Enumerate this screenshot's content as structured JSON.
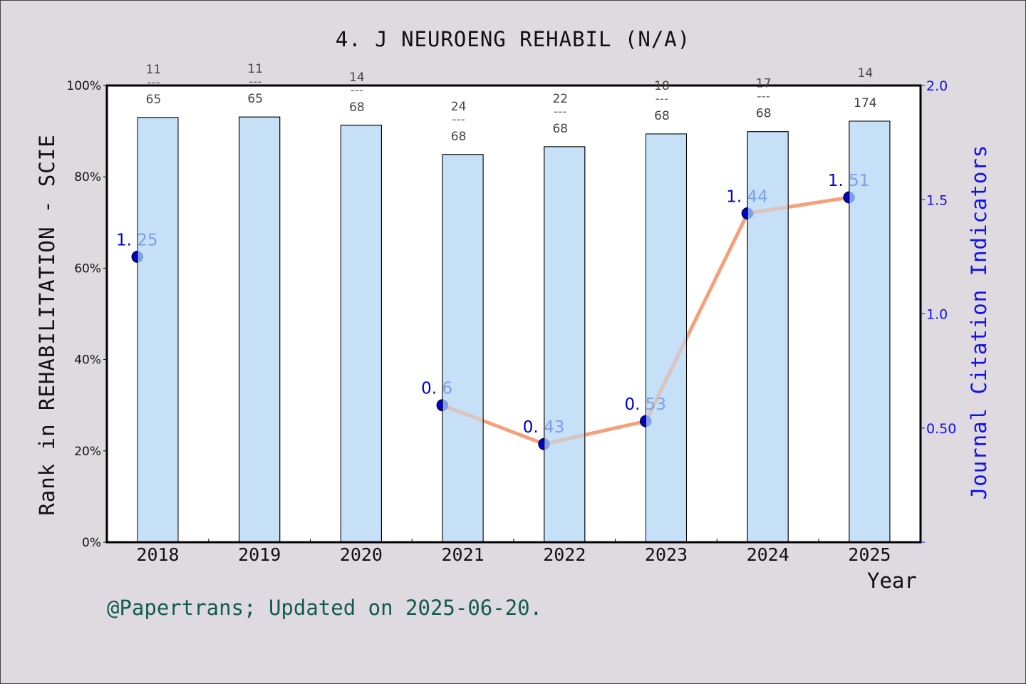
{
  "title": "4. J NEUROENG REHABIL (N/A)",
  "y_left_label": "Rank in REHABILITATION - SCIE",
  "y_right_label": "Journal Citation Indicators",
  "x_label": "Year",
  "footer": "@Papertrans; Updated on 2025-06-20.",
  "colors": {
    "background": "#dedae0",
    "plot_bg": "#ffffff",
    "bar_fill": "#c5e0f7",
    "line": "#f5a07a",
    "marker_dark": "#0000cc",
    "marker_light": "#7f9fe8",
    "right_axis": "#1010ee",
    "footer": "#125a50"
  },
  "chart_data": [
    {
      "type": "bar",
      "title": "4. J NEUROENG REHABIL (N/A)",
      "xlabel": "Year",
      "ylabel": "Rank in REHABILITATION - SCIE",
      "ylim": [
        0,
        100
      ],
      "y_ticks": [
        "0%",
        "20%",
        "40%",
        "60%",
        "80%",
        "100%"
      ],
      "categories": [
        "2018",
        "2019",
        "2020",
        "2021",
        "2022",
        "2023",
        "2024",
        "2025"
      ],
      "values": [
        93.0,
        93.1,
        91.3,
        84.9,
        86.6,
        89.4,
        89.9,
        92.2
      ],
      "rank_labels": [
        {
          "rank": "11",
          "total": "65"
        },
        {
          "rank": "11",
          "total": "65"
        },
        {
          "rank": "14",
          "total": "68"
        },
        {
          "rank": "24",
          "total": "68"
        },
        {
          "rank": "22",
          "total": "68"
        },
        {
          "rank": "18",
          "total": "68"
        },
        {
          "rank": "17",
          "total": "68"
        },
        {
          "rank": "14",
          "total": "174"
        }
      ],
      "grid": false
    },
    {
      "type": "line",
      "ylabel": "Journal Citation Indicators",
      "ylim": [
        0,
        2.0
      ],
      "y_ticks": [
        "0.50",
        "1.0",
        "1.5",
        "2.0"
      ],
      "x": [
        "2018",
        "2021",
        "2022",
        "2023",
        "2024",
        "2025"
      ],
      "values": [
        1.25,
        0.6,
        0.43,
        0.53,
        1.44,
        1.51
      ],
      "point_labels": [
        "1.25",
        "0.6",
        "0.43",
        "0.53",
        "1.44",
        "1.51"
      ],
      "note": "No JCI values plotted for 2019 and 2020; line drawn only between consecutive years 2021-2025"
    }
  ]
}
